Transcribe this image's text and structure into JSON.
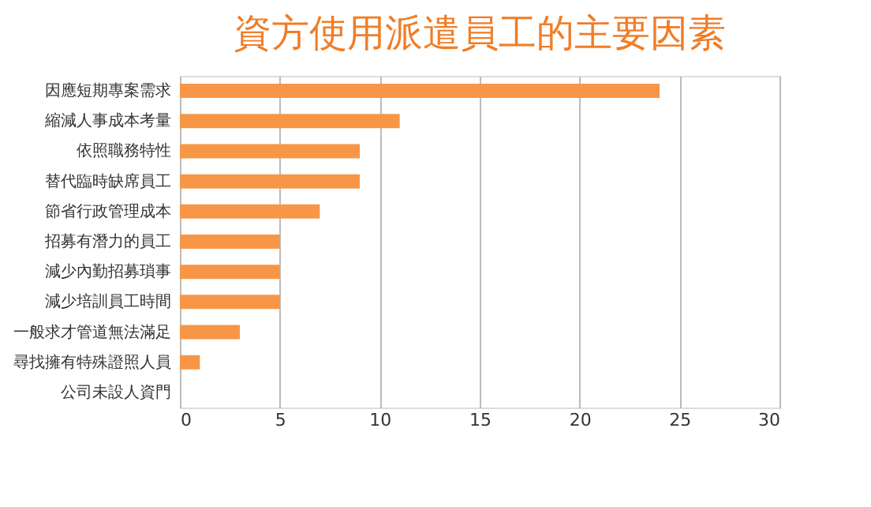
{
  "chart_data": {
    "type": "bar",
    "orientation": "horizontal",
    "title": "資方使用派遣員工的主要因素",
    "categories": [
      "因應短期專案需求",
      "縮減人事成本考量",
      "依照職務特性",
      "替代臨時缺席員工",
      "節省行政管理成本",
      "招募有潛力的員工",
      "減少內勤招募瑣事",
      "減少培訓員工時間",
      "一般求才管道無法滿足",
      "尋找擁有特殊證照人員",
      "公司未設人資門"
    ],
    "values": [
      24,
      11,
      9,
      9,
      7,
      5,
      5,
      5,
      3,
      1,
      0
    ],
    "color": "#f79646",
    "xlim": [
      0,
      30
    ],
    "xticks": [
      0,
      5,
      10,
      15,
      20,
      25,
      30
    ],
    "grid": "x"
  }
}
